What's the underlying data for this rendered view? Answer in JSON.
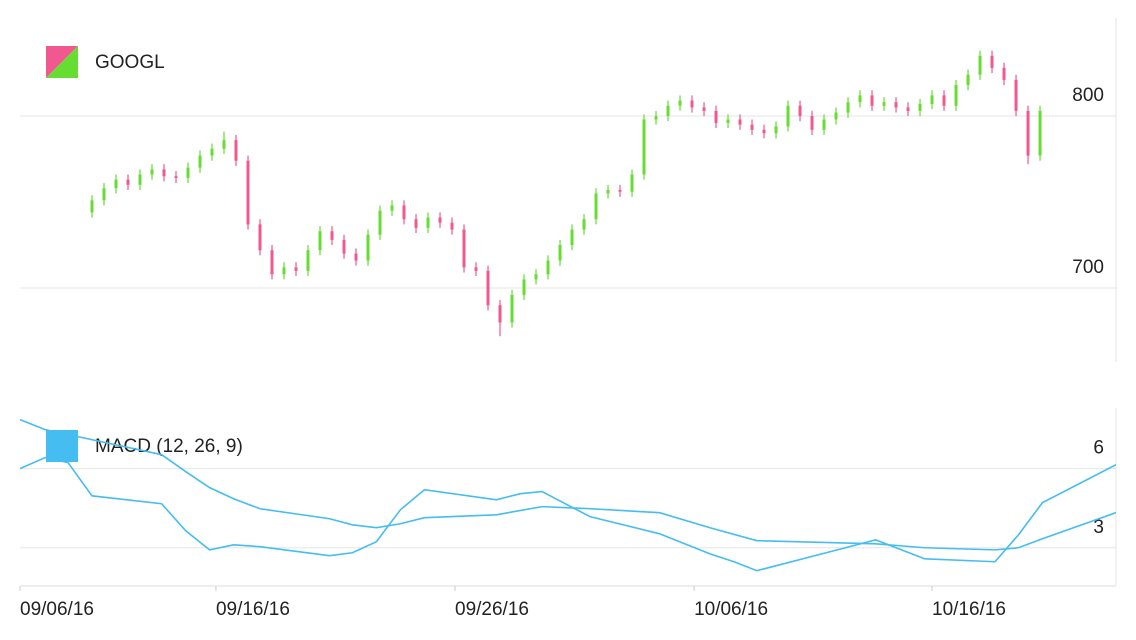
{
  "chart_data": [
    {
      "type": "ohlc",
      "legend": "GOOGL",
      "up_color": "#66dd33",
      "down_color": "#f0588f",
      "xlim": [
        0,
        91.33
      ],
      "ylim": [
        657,
        857
      ],
      "yticks": [
        700,
        800
      ],
      "grid": true,
      "x": [
        6,
        7,
        8,
        9,
        10,
        11,
        12,
        13,
        14,
        15,
        16,
        17,
        18,
        19,
        20,
        21,
        22,
        23,
        24,
        25,
        26,
        27,
        28,
        29,
        30,
        31,
        32,
        33,
        34,
        35,
        36,
        37,
        38,
        39,
        40,
        41,
        42,
        43,
        44,
        45,
        46,
        47,
        48,
        49,
        50,
        51,
        52,
        53,
        54,
        55,
        56,
        57,
        58,
        59,
        60,
        61,
        62,
        63,
        64,
        65,
        66,
        67,
        68,
        69,
        70,
        71,
        72,
        73,
        74,
        75,
        76,
        77,
        78,
        79,
        80,
        81,
        82,
        83,
        84,
        85
      ],
      "open": [
        744,
        751,
        758,
        763,
        760,
        766,
        769,
        765,
        764,
        770,
        777,
        781,
        786,
        774,
        737,
        722,
        708,
        712,
        710,
        722,
        733,
        728,
        720,
        716,
        731,
        745,
        748,
        740,
        735,
        741,
        738,
        734,
        712,
        710,
        690,
        680,
        696,
        705,
        708,
        716,
        725,
        734,
        740,
        755,
        757,
        756,
        766,
        798,
        800,
        806,
        809,
        805,
        803,
        796,
        798,
        795,
        792,
        790,
        794,
        806,
        800,
        792,
        798,
        802,
        808,
        812,
        806,
        808,
        805,
        803,
        807,
        812,
        806,
        818,
        824,
        835,
        828,
        821,
        803,
        777
      ],
      "high": [
        754,
        761,
        766,
        766,
        769,
        772,
        772,
        768,
        773,
        780,
        784,
        791,
        789,
        777,
        740,
        725,
        715,
        715,
        725,
        736,
        736,
        731,
        723,
        734,
        748,
        751,
        751,
        743,
        744,
        744,
        741,
        737,
        715,
        713,
        693,
        699,
        708,
        711,
        719,
        728,
        737,
        743,
        758,
        760,
        760,
        769,
        801,
        803,
        809,
        812,
        812,
        808,
        806,
        801,
        801,
        798,
        795,
        797,
        809,
        809,
        803,
        801,
        805,
        811,
        815,
        815,
        811,
        811,
        808,
        810,
        815,
        815,
        821,
        827,
        838,
        838,
        831,
        824,
        806,
        806
      ],
      "low": [
        741,
        748,
        755,
        757,
        757,
        763,
        762,
        761,
        761,
        767,
        774,
        778,
        771,
        734,
        719,
        705,
        705,
        707,
        707,
        719,
        725,
        717,
        713,
        713,
        728,
        742,
        737,
        732,
        732,
        735,
        731,
        709,
        707,
        687,
        672,
        677,
        693,
        702,
        705,
        713,
        722,
        731,
        737,
        752,
        753,
        753,
        763,
        795,
        797,
        803,
        802,
        800,
        793,
        793,
        792,
        789,
        787,
        787,
        791,
        797,
        789,
        789,
        795,
        799,
        805,
        803,
        803,
        802,
        800,
        800,
        804,
        803,
        803,
        815,
        821,
        825,
        818,
        800,
        772,
        774
      ],
      "close": [
        751,
        758,
        763,
        760,
        766,
        769,
        765,
        764,
        770,
        777,
        781,
        786,
        774,
        737,
        722,
        708,
        712,
        710,
        722,
        733,
        728,
        720,
        716,
        731,
        745,
        748,
        740,
        735,
        741,
        738,
        734,
        712,
        710,
        690,
        680,
        696,
        705,
        708,
        716,
        725,
        734,
        740,
        755,
        757,
        756,
        766,
        798,
        800,
        806,
        809,
        805,
        803,
        796,
        798,
        795,
        792,
        790,
        794,
        806,
        800,
        792,
        798,
        802,
        808,
        812,
        806,
        808,
        805,
        803,
        807,
        812,
        806,
        818,
        824,
        835,
        828,
        821,
        803,
        777,
        803
      ]
    },
    {
      "type": "line",
      "xlim": [
        0,
        91.33
      ],
      "ylim": [
        1.55,
        8.3
      ],
      "yticks": [
        3,
        6
      ],
      "grid": true,
      "xticks": [
        {
          "value": 0,
          "label": "09/06/16"
        },
        {
          "value": 16.33,
          "label": "09/16/16"
        },
        {
          "value": 36.25,
          "label": "09/26/16"
        },
        {
          "value": 56.17,
          "label": "10/06/16"
        },
        {
          "value": 76,
          "label": "10/16/16"
        }
      ],
      "series": [
        {
          "name": "MACD (12, 26, 9)",
          "color": "#45bdf0",
          "x": [
            0,
            2.1,
            4,
            6,
            11.8,
            13.8,
            15.8,
            17.8,
            20,
            25.8,
            27.7,
            29.7,
            31.7,
            33.7,
            39.7,
            41.7,
            43.5,
            47.5,
            53.3,
            57.5,
            59.5,
            61.4,
            67.5,
            71.3,
            75.4,
            81.25,
            83.2,
            85.2,
            91.33
          ],
          "values": [
            6.0,
            6.42,
            6.23,
            4.97,
            4.67,
            3.65,
            2.92,
            3.11,
            3.04,
            2.7,
            2.81,
            3.23,
            4.44,
            5.2,
            4.82,
            5.05,
            5.13,
            4.18,
            3.53,
            2.77,
            2.47,
            2.13,
            2.85,
            3.3,
            2.58,
            2.47,
            3.49,
            4.71,
            6.15
          ]
        },
        {
          "color": "#45bdf0",
          "x": [
            0,
            2.1,
            11.8,
            13.8,
            15.8,
            17.8,
            20,
            25.8,
            27.7,
            29.7,
            31.7,
            33.7,
            39.7,
            43.5,
            47.5,
            53.3,
            57.5,
            61.4,
            71.3,
            75.4,
            81.25,
            83.2,
            85.2,
            91.33
          ],
          "values": [
            7.86,
            7.48,
            6.53,
            5.89,
            5.28,
            4.86,
            4.48,
            4.1,
            3.87,
            3.76,
            3.91,
            4.14,
            4.25,
            4.56,
            4.48,
            4.33,
            3.76,
            3.27,
            3.15,
            3.0,
            2.92,
            3.0,
            3.34,
            4.33
          ]
        }
      ]
    }
  ]
}
